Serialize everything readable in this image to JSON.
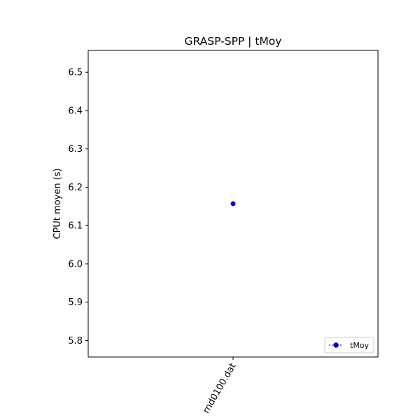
{
  "chart_data": {
    "type": "line",
    "title": "GRASP-SPP | tMoy",
    "xlabel": "",
    "ylabel": "CPUt moyen (s)",
    "categories": [
      "rnd0100.dat"
    ],
    "series": [
      {
        "name": "tMoy",
        "values": [
          6.157
        ]
      }
    ],
    "ylim": [
      5.757,
      6.557
    ],
    "yticks": [
      "5.8",
      "5.9",
      "6.0",
      "6.1",
      "6.2",
      "6.3",
      "6.4",
      "6.5"
    ],
    "ytick_values": [
      5.8,
      5.9,
      6.0,
      6.1,
      6.2,
      6.3,
      6.4,
      6.5
    ],
    "grid": false,
    "legend_position": "lower-right",
    "colors": {
      "series": "#0000cd",
      "axes": "#000000",
      "legend_border": "#cccccc"
    },
    "marker": "circle",
    "line_style": "dashed"
  }
}
